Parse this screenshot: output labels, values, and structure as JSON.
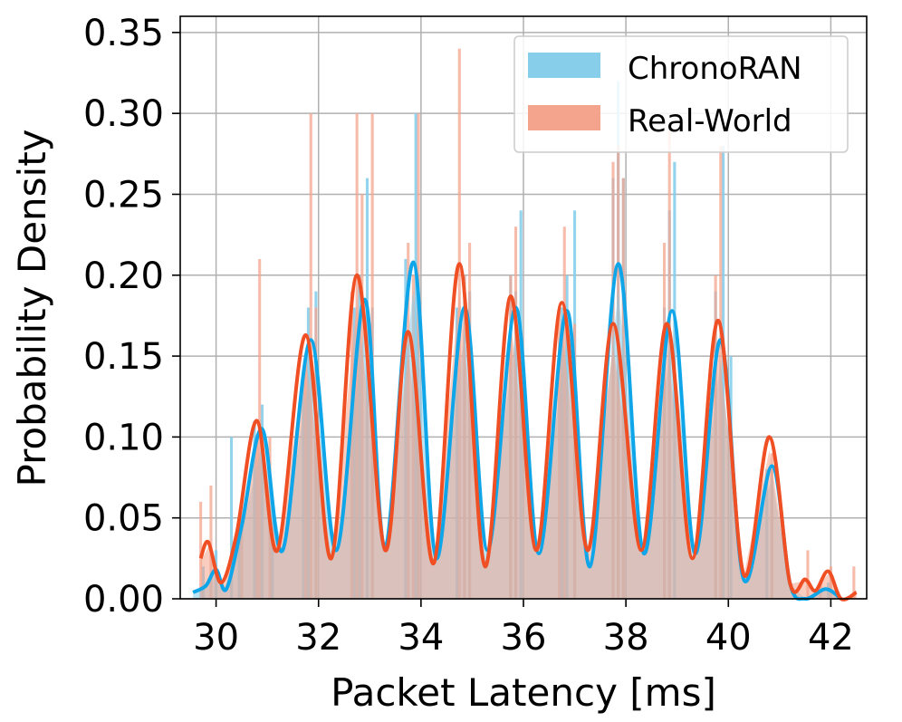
{
  "chart_data": {
    "type": "histogram",
    "xlabel": "Packet Latency [ms]",
    "ylabel": "Probability Density",
    "xlim": [
      29.3,
      42.7
    ],
    "ylim": [
      0,
      0.36
    ],
    "xticks": [
      "30",
      "32",
      "34",
      "36",
      "38",
      "40",
      "42"
    ],
    "yticks": [
      "0.00",
      "0.05",
      "0.10",
      "0.15",
      "0.20",
      "0.25",
      "0.30",
      "0.35"
    ],
    "grid": true,
    "legend_position": "top-right",
    "series": [
      {
        "name": "ChronoRAN",
        "bar_color": "#87CEEB",
        "line_color": "#0ea5e9",
        "kde": [
          {
            "x": 29.55,
            "y": 0.004
          },
          {
            "x": 29.8,
            "y": 0.008
          },
          {
            "x": 30.0,
            "y": 0.018
          },
          {
            "x": 30.2,
            "y": 0.006
          },
          {
            "x": 30.5,
            "y": 0.045
          },
          {
            "x": 30.9,
            "y": 0.105
          },
          {
            "x": 31.3,
            "y": 0.03
          },
          {
            "x": 31.85,
            "y": 0.16
          },
          {
            "x": 32.35,
            "y": 0.03
          },
          {
            "x": 32.9,
            "y": 0.185
          },
          {
            "x": 33.3,
            "y": 0.032
          },
          {
            "x": 33.85,
            "y": 0.208
          },
          {
            "x": 34.3,
            "y": 0.025
          },
          {
            "x": 34.85,
            "y": 0.18
          },
          {
            "x": 35.3,
            "y": 0.03
          },
          {
            "x": 35.85,
            "y": 0.18
          },
          {
            "x": 36.3,
            "y": 0.028
          },
          {
            "x": 36.85,
            "y": 0.178
          },
          {
            "x": 37.3,
            "y": 0.02
          },
          {
            "x": 37.85,
            "y": 0.207
          },
          {
            "x": 38.35,
            "y": 0.028
          },
          {
            "x": 38.9,
            "y": 0.178
          },
          {
            "x": 39.35,
            "y": 0.028
          },
          {
            "x": 39.85,
            "y": 0.16
          },
          {
            "x": 40.3,
            "y": 0.012
          },
          {
            "x": 40.85,
            "y": 0.082
          },
          {
            "x": 41.2,
            "y": 0.01
          },
          {
            "x": 41.5,
            "y": 0.0
          },
          {
            "x": 41.9,
            "y": 0.006
          },
          {
            "x": 42.2,
            "y": 0.0
          }
        ],
        "bars": [
          {
            "x": 29.75,
            "y": 0.02
          },
          {
            "x": 30.0,
            "y": 0.03
          },
          {
            "x": 30.3,
            "y": 0.1
          },
          {
            "x": 30.45,
            "y": 0.05
          },
          {
            "x": 30.75,
            "y": 0.11
          },
          {
            "x": 30.9,
            "y": 0.12
          },
          {
            "x": 31.1,
            "y": 0.06
          },
          {
            "x": 31.7,
            "y": 0.14
          },
          {
            "x": 31.8,
            "y": 0.18
          },
          {
            "x": 31.95,
            "y": 0.19
          },
          {
            "x": 32.7,
            "y": 0.18
          },
          {
            "x": 32.8,
            "y": 0.2
          },
          {
            "x": 32.95,
            "y": 0.26
          },
          {
            "x": 33.05,
            "y": 0.18
          },
          {
            "x": 33.7,
            "y": 0.21
          },
          {
            "x": 33.9,
            "y": 0.3
          },
          {
            "x": 33.95,
            "y": 0.2
          },
          {
            "x": 34.7,
            "y": 0.18
          },
          {
            "x": 34.85,
            "y": 0.2
          },
          {
            "x": 34.95,
            "y": 0.19
          },
          {
            "x": 35.75,
            "y": 0.2
          },
          {
            "x": 35.85,
            "y": 0.19
          },
          {
            "x": 35.95,
            "y": 0.24
          },
          {
            "x": 36.75,
            "y": 0.18
          },
          {
            "x": 36.85,
            "y": 0.2
          },
          {
            "x": 37.0,
            "y": 0.24
          },
          {
            "x": 37.75,
            "y": 0.26
          },
          {
            "x": 37.85,
            "y": 0.32
          },
          {
            "x": 37.95,
            "y": 0.26
          },
          {
            "x": 38.75,
            "y": 0.18
          },
          {
            "x": 38.85,
            "y": 0.24
          },
          {
            "x": 38.95,
            "y": 0.27
          },
          {
            "x": 39.75,
            "y": 0.19
          },
          {
            "x": 39.9,
            "y": 0.28
          },
          {
            "x": 40.05,
            "y": 0.15
          },
          {
            "x": 40.75,
            "y": 0.08
          },
          {
            "x": 40.85,
            "y": 0.08
          },
          {
            "x": 41.95,
            "y": 0.01
          }
        ]
      },
      {
        "name": "Real-World",
        "bar_color": "#F4A48D",
        "line_color": "#f04e23",
        "kde": [
          {
            "x": 29.7,
            "y": 0.025
          },
          {
            "x": 29.85,
            "y": 0.035
          },
          {
            "x": 30.1,
            "y": 0.01
          },
          {
            "x": 30.4,
            "y": 0.04
          },
          {
            "x": 30.8,
            "y": 0.11
          },
          {
            "x": 31.2,
            "y": 0.03
          },
          {
            "x": 31.75,
            "y": 0.163
          },
          {
            "x": 32.25,
            "y": 0.025
          },
          {
            "x": 32.75,
            "y": 0.2
          },
          {
            "x": 33.3,
            "y": 0.03
          },
          {
            "x": 33.75,
            "y": 0.165
          },
          {
            "x": 34.25,
            "y": 0.022
          },
          {
            "x": 34.75,
            "y": 0.207
          },
          {
            "x": 35.25,
            "y": 0.02
          },
          {
            "x": 35.75,
            "y": 0.187
          },
          {
            "x": 36.25,
            "y": 0.03
          },
          {
            "x": 36.75,
            "y": 0.183
          },
          {
            "x": 37.25,
            "y": 0.03
          },
          {
            "x": 37.75,
            "y": 0.17
          },
          {
            "x": 38.3,
            "y": 0.03
          },
          {
            "x": 38.8,
            "y": 0.17
          },
          {
            "x": 39.3,
            "y": 0.025
          },
          {
            "x": 39.8,
            "y": 0.172
          },
          {
            "x": 40.3,
            "y": 0.015
          },
          {
            "x": 40.8,
            "y": 0.1
          },
          {
            "x": 41.2,
            "y": 0.01
          },
          {
            "x": 41.5,
            "y": 0.012
          },
          {
            "x": 41.7,
            "y": 0.005
          },
          {
            "x": 41.95,
            "y": 0.017
          },
          {
            "x": 42.2,
            "y": 0.0
          },
          {
            "x": 42.5,
            "y": 0.004
          }
        ],
        "bars": [
          {
            "x": 29.7,
            "y": 0.06
          },
          {
            "x": 29.9,
            "y": 0.07
          },
          {
            "x": 30.5,
            "y": 0.05
          },
          {
            "x": 30.8,
            "y": 0.1
          },
          {
            "x": 30.85,
            "y": 0.21
          },
          {
            "x": 31.05,
            "y": 0.1
          },
          {
            "x": 31.75,
            "y": 0.15
          },
          {
            "x": 31.85,
            "y": 0.3
          },
          {
            "x": 31.95,
            "y": 0.18
          },
          {
            "x": 32.65,
            "y": 0.19
          },
          {
            "x": 32.75,
            "y": 0.3
          },
          {
            "x": 32.85,
            "y": 0.25
          },
          {
            "x": 33.05,
            "y": 0.3
          },
          {
            "x": 33.75,
            "y": 0.22
          },
          {
            "x": 33.85,
            "y": 0.2
          },
          {
            "x": 33.95,
            "y": 0.3
          },
          {
            "x": 34.75,
            "y": 0.34
          },
          {
            "x": 34.85,
            "y": 0.2
          },
          {
            "x": 34.95,
            "y": 0.22
          },
          {
            "x": 35.75,
            "y": 0.2
          },
          {
            "x": 35.85,
            "y": 0.23
          },
          {
            "x": 36.7,
            "y": 0.18
          },
          {
            "x": 36.8,
            "y": 0.23
          },
          {
            "x": 37.0,
            "y": 0.17
          },
          {
            "x": 37.75,
            "y": 0.27
          },
          {
            "x": 37.85,
            "y": 0.28
          },
          {
            "x": 37.95,
            "y": 0.26
          },
          {
            "x": 38.75,
            "y": 0.22
          },
          {
            "x": 38.85,
            "y": 0.29
          },
          {
            "x": 39.75,
            "y": 0.2
          },
          {
            "x": 39.85,
            "y": 0.28
          },
          {
            "x": 40.85,
            "y": 0.09
          },
          {
            "x": 41.55,
            "y": 0.03
          },
          {
            "x": 41.8,
            "y": 0.01
          },
          {
            "x": 42.0,
            "y": 0.02
          },
          {
            "x": 42.45,
            "y": 0.02
          }
        ]
      }
    ]
  }
}
